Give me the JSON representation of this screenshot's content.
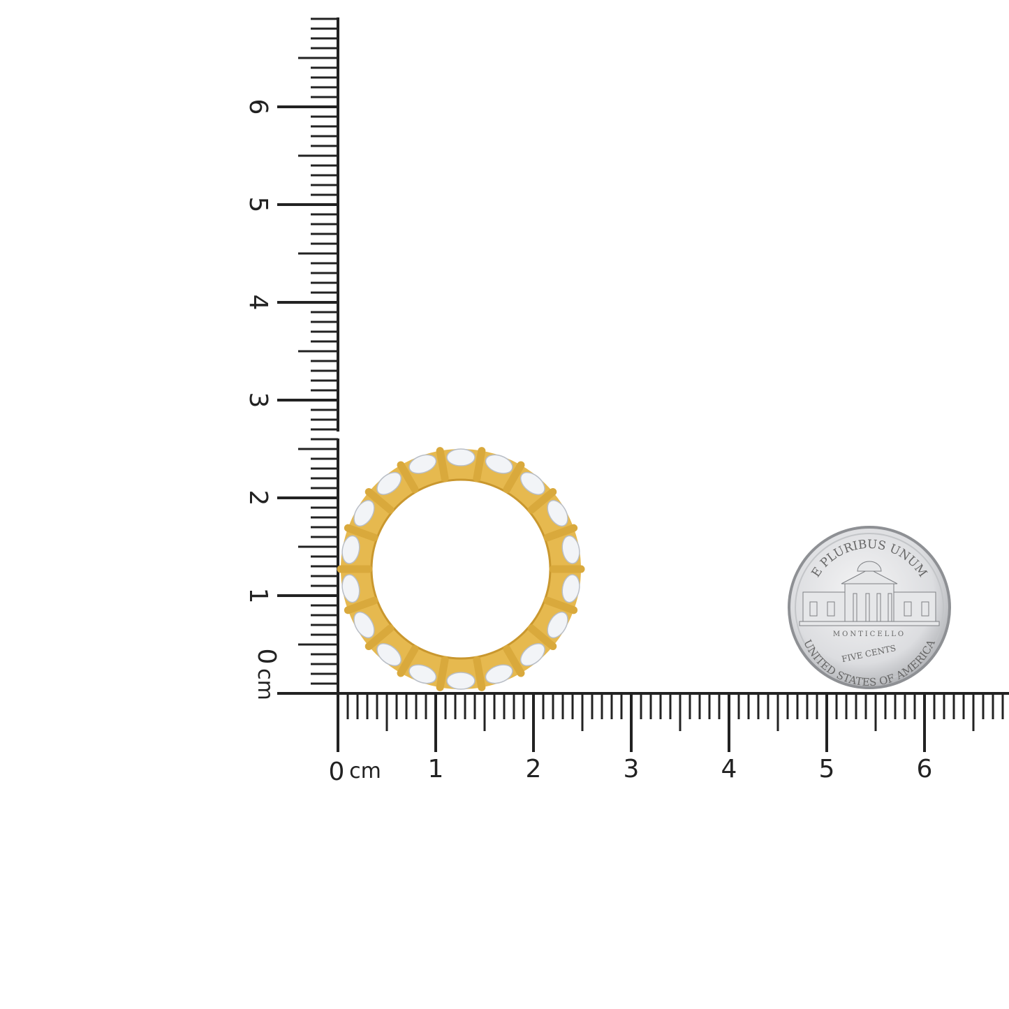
{
  "ruler": {
    "unit": "cm",
    "zero_label": "0",
    "vertical_labels": [
      "1",
      "2",
      "3",
      "4",
      "5",
      "6"
    ],
    "horizontal_labels": [
      "1",
      "2",
      "3",
      "4",
      "5",
      "6"
    ],
    "tick_color": "#222222"
  },
  "ring": {
    "metal_color": "#E6B94F",
    "stone_color": "#F2F4F7"
  },
  "coin": {
    "top_inscription": "E PLURIBUS UNUM",
    "building_label": "MONTICELLO",
    "denomination": "FIVE CENTS",
    "bottom_inscription": "UNITED STATES OF AMERICA",
    "color": "#D9DADC"
  }
}
